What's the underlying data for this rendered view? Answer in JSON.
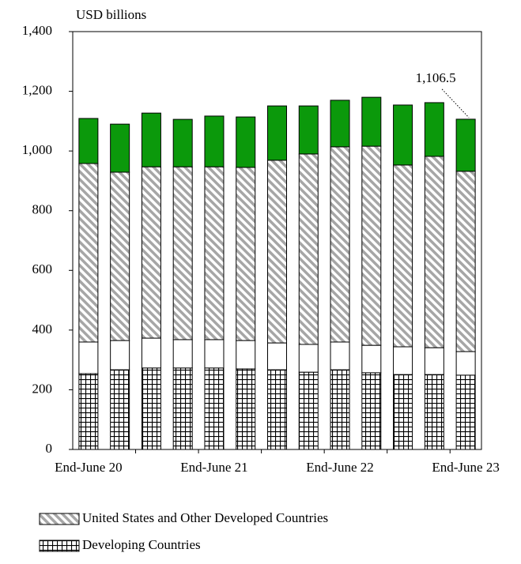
{
  "chart_data": {
    "type": "stacked_bar",
    "y_label": "USD billions",
    "annotation": {
      "value": 1106.5,
      "label": "1,106.5"
    },
    "categories": [
      "End-June 20",
      null,
      null,
      null,
      "End-June 21",
      null,
      null,
      null,
      "End-June 22",
      null,
      null,
      null,
      "End-June 23"
    ],
    "series": [
      {
        "name": "Developing Countries",
        "color": "#000000",
        "pattern": "grid",
        "values": [
          254,
          267,
          273,
          273,
          273,
          270,
          267,
          259,
          267,
          257,
          251,
          251,
          249
        ]
      },
      {
        "color": "#ffffff",
        "values": [
          106,
          98,
          100,
          95,
          95,
          95,
          90,
          93,
          93,
          92,
          93,
          90,
          79
        ]
      },
      {
        "name": "United States and Other Developed Countries",
        "color": "#a6a6a6",
        "pattern": "hatch",
        "values": [
          598,
          564,
          574,
          579,
          579,
          580,
          612,
          638,
          654,
          667,
          609,
          641,
          604
        ]
      },
      {
        "color": "#0b990b",
        "values": [
          151,
          161,
          180,
          159,
          170,
          169,
          182,
          161,
          156,
          164,
          201,
          180,
          174.5
        ]
      }
    ],
    "ylim": [
      0,
      1400
    ],
    "yticks": [
      0,
      200,
      400,
      600,
      800,
      {
        "value": 1000,
        "label": "1,000"
      },
      {
        "value": 1200,
        "label": "1,200"
      },
      {
        "value": 1400,
        "label": "1,400"
      }
    ]
  }
}
